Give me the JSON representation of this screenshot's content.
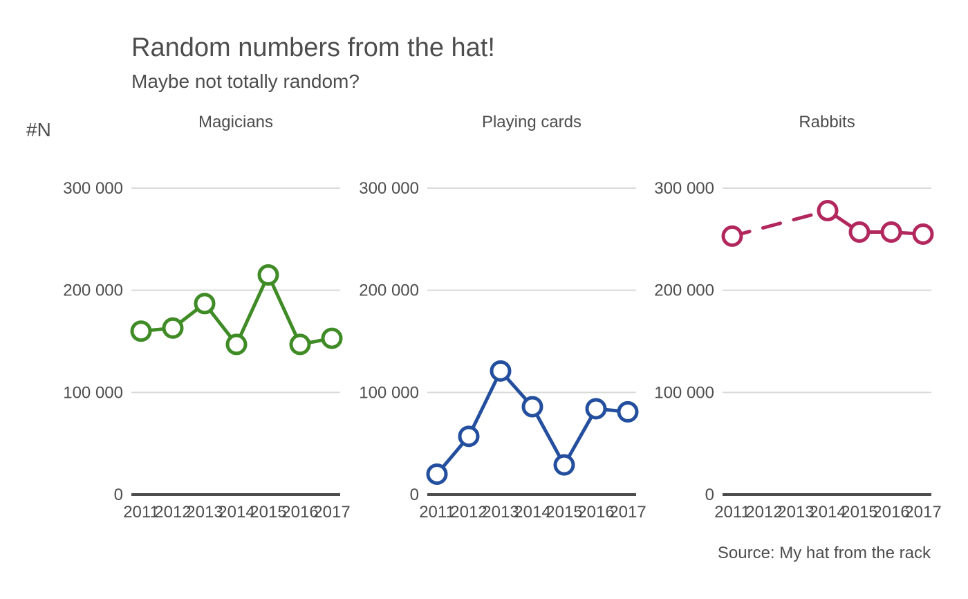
{
  "chart_data": {
    "type": "line",
    "title": "Random numbers from the hat!",
    "subtitle": "Maybe not totally random?",
    "ylabel": "#N",
    "caption": "Source: My hat from the rack",
    "ylim": [
      0,
      330000
    ],
    "yticks": [
      0,
      100000,
      200000,
      300000
    ],
    "ytick_labels": [
      "0",
      "100 000",
      "200 000",
      "300 000"
    ],
    "x": [
      "2011",
      "2012",
      "2013",
      "2014",
      "2015",
      "2016",
      "2017"
    ],
    "grid": "horizontal",
    "panels": [
      {
        "title": "Magicians",
        "color": "#3f8b26",
        "values": [
          160000,
          163000,
          187000,
          147000,
          215000,
          147000,
          153000
        ],
        "line_style": "solid"
      },
      {
        "title": "Playing cards",
        "color": "#244f9e",
        "values": [
          20000,
          57000,
          121000,
          86000,
          29000,
          84000,
          81000
        ],
        "line_style": "solid"
      },
      {
        "title": "Rabbits",
        "color": "#b2285e",
        "values": [
          253000,
          null,
          null,
          278000,
          257000,
          257000,
          255000
        ],
        "line_style": "dashed across missing years"
      }
    ]
  }
}
